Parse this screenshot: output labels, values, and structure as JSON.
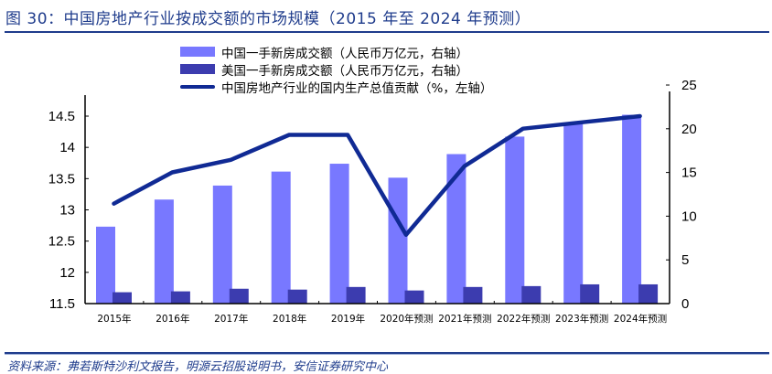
{
  "header": {
    "title": "图 30：中国房地产行业按成交额的市场规模（2015 年至 2024 年预测）"
  },
  "footer": {
    "source": "资料来源：弗若斯特沙利文报告，明源云招股说明书，安信证券研究中心"
  },
  "colors": {
    "accent": "#1F3C8C",
    "china_bar": "#7878FF",
    "us_bar": "#3C3CAF",
    "gdp_line": "#102A94"
  },
  "legend": {
    "items": [
      {
        "label": "中国一手新房成交额（人民币万亿元，右轴）",
        "type": "bar",
        "color": "#7878FF"
      },
      {
        "label": "美国一手新房成交额（人民币万亿元，右轴）",
        "type": "bar",
        "color": "#3C3CAF"
      },
      {
        "label": "中国房地产行业的国内生产总值贡献（%，左轴）",
        "type": "line",
        "color": "#102A94"
      }
    ]
  },
  "chart_data": {
    "type": "bar",
    "title": "图 30：中国房地产行业按成交额的市场规模（2015 年至 2024 年预测）",
    "xlabel": "",
    "ylabel": "",
    "categories": [
      "2015年",
      "2016年",
      "2017年",
      "2018年",
      "2019年",
      "2020年预测",
      "2021年预测",
      "2022年预测",
      "2023年预测",
      "2024年预测"
    ],
    "series": [
      {
        "name": "中国一手新房成交额（人民币万亿元，右轴）",
        "type": "bar",
        "axis": "right",
        "values": [
          8.8,
          11.9,
          13.5,
          15.1,
          16.0,
          14.4,
          17.1,
          19.1,
          20.6,
          21.6
        ]
      },
      {
        "name": "美国一手新房成交额（人民币万亿元，右轴）",
        "type": "bar",
        "axis": "right",
        "values": [
          1.3,
          1.4,
          1.7,
          1.6,
          1.9,
          1.5,
          1.9,
          2.0,
          2.2,
          2.2
        ]
      },
      {
        "name": "中国房地产行业的国内生产总值贡献（%，左轴）",
        "type": "line",
        "axis": "left",
        "values": [
          13.1,
          13.6,
          13.8,
          14.2,
          14.2,
          12.6,
          13.7,
          14.3,
          14.4,
          14.5
        ]
      }
    ],
    "left_axis": {
      "ylim": [
        11.5,
        14.5
      ],
      "ticks": [
        "11.5",
        "12",
        "12.5",
        "13",
        "13.5",
        "14",
        "14.5"
      ]
    },
    "right_axis": {
      "ylim": [
        0,
        25
      ],
      "ticks": [
        "0",
        "5",
        "10",
        "15",
        "20",
        "25"
      ]
    },
    "grid": false,
    "legend_position": "top"
  }
}
